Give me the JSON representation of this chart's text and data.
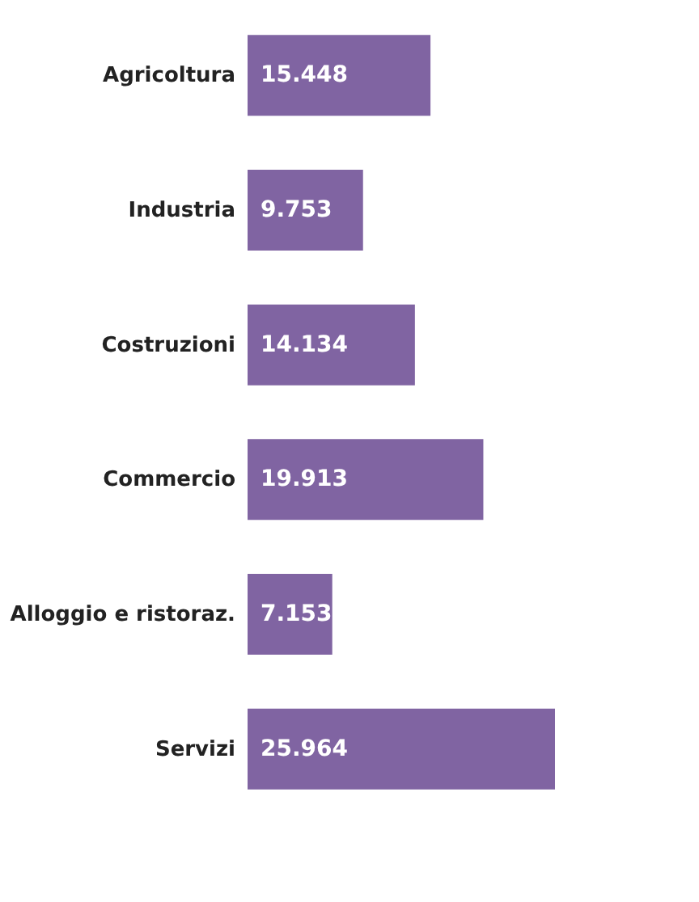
{
  "chart_data": {
    "type": "bar",
    "orientation": "horizontal",
    "categories": [
      "Agricoltura",
      "Industria",
      "Costruzioni",
      "Commercio",
      "Alloggio e ristoraz.",
      "Servizi"
    ],
    "values": [
      15448,
      9753,
      14134,
      19913,
      7153,
      25964
    ],
    "value_labels": [
      "15.448",
      "9.753",
      "14.134",
      "19.913",
      "7.153",
      "25.964"
    ],
    "color": "#8064a2",
    "tick_labels": "y"
  }
}
